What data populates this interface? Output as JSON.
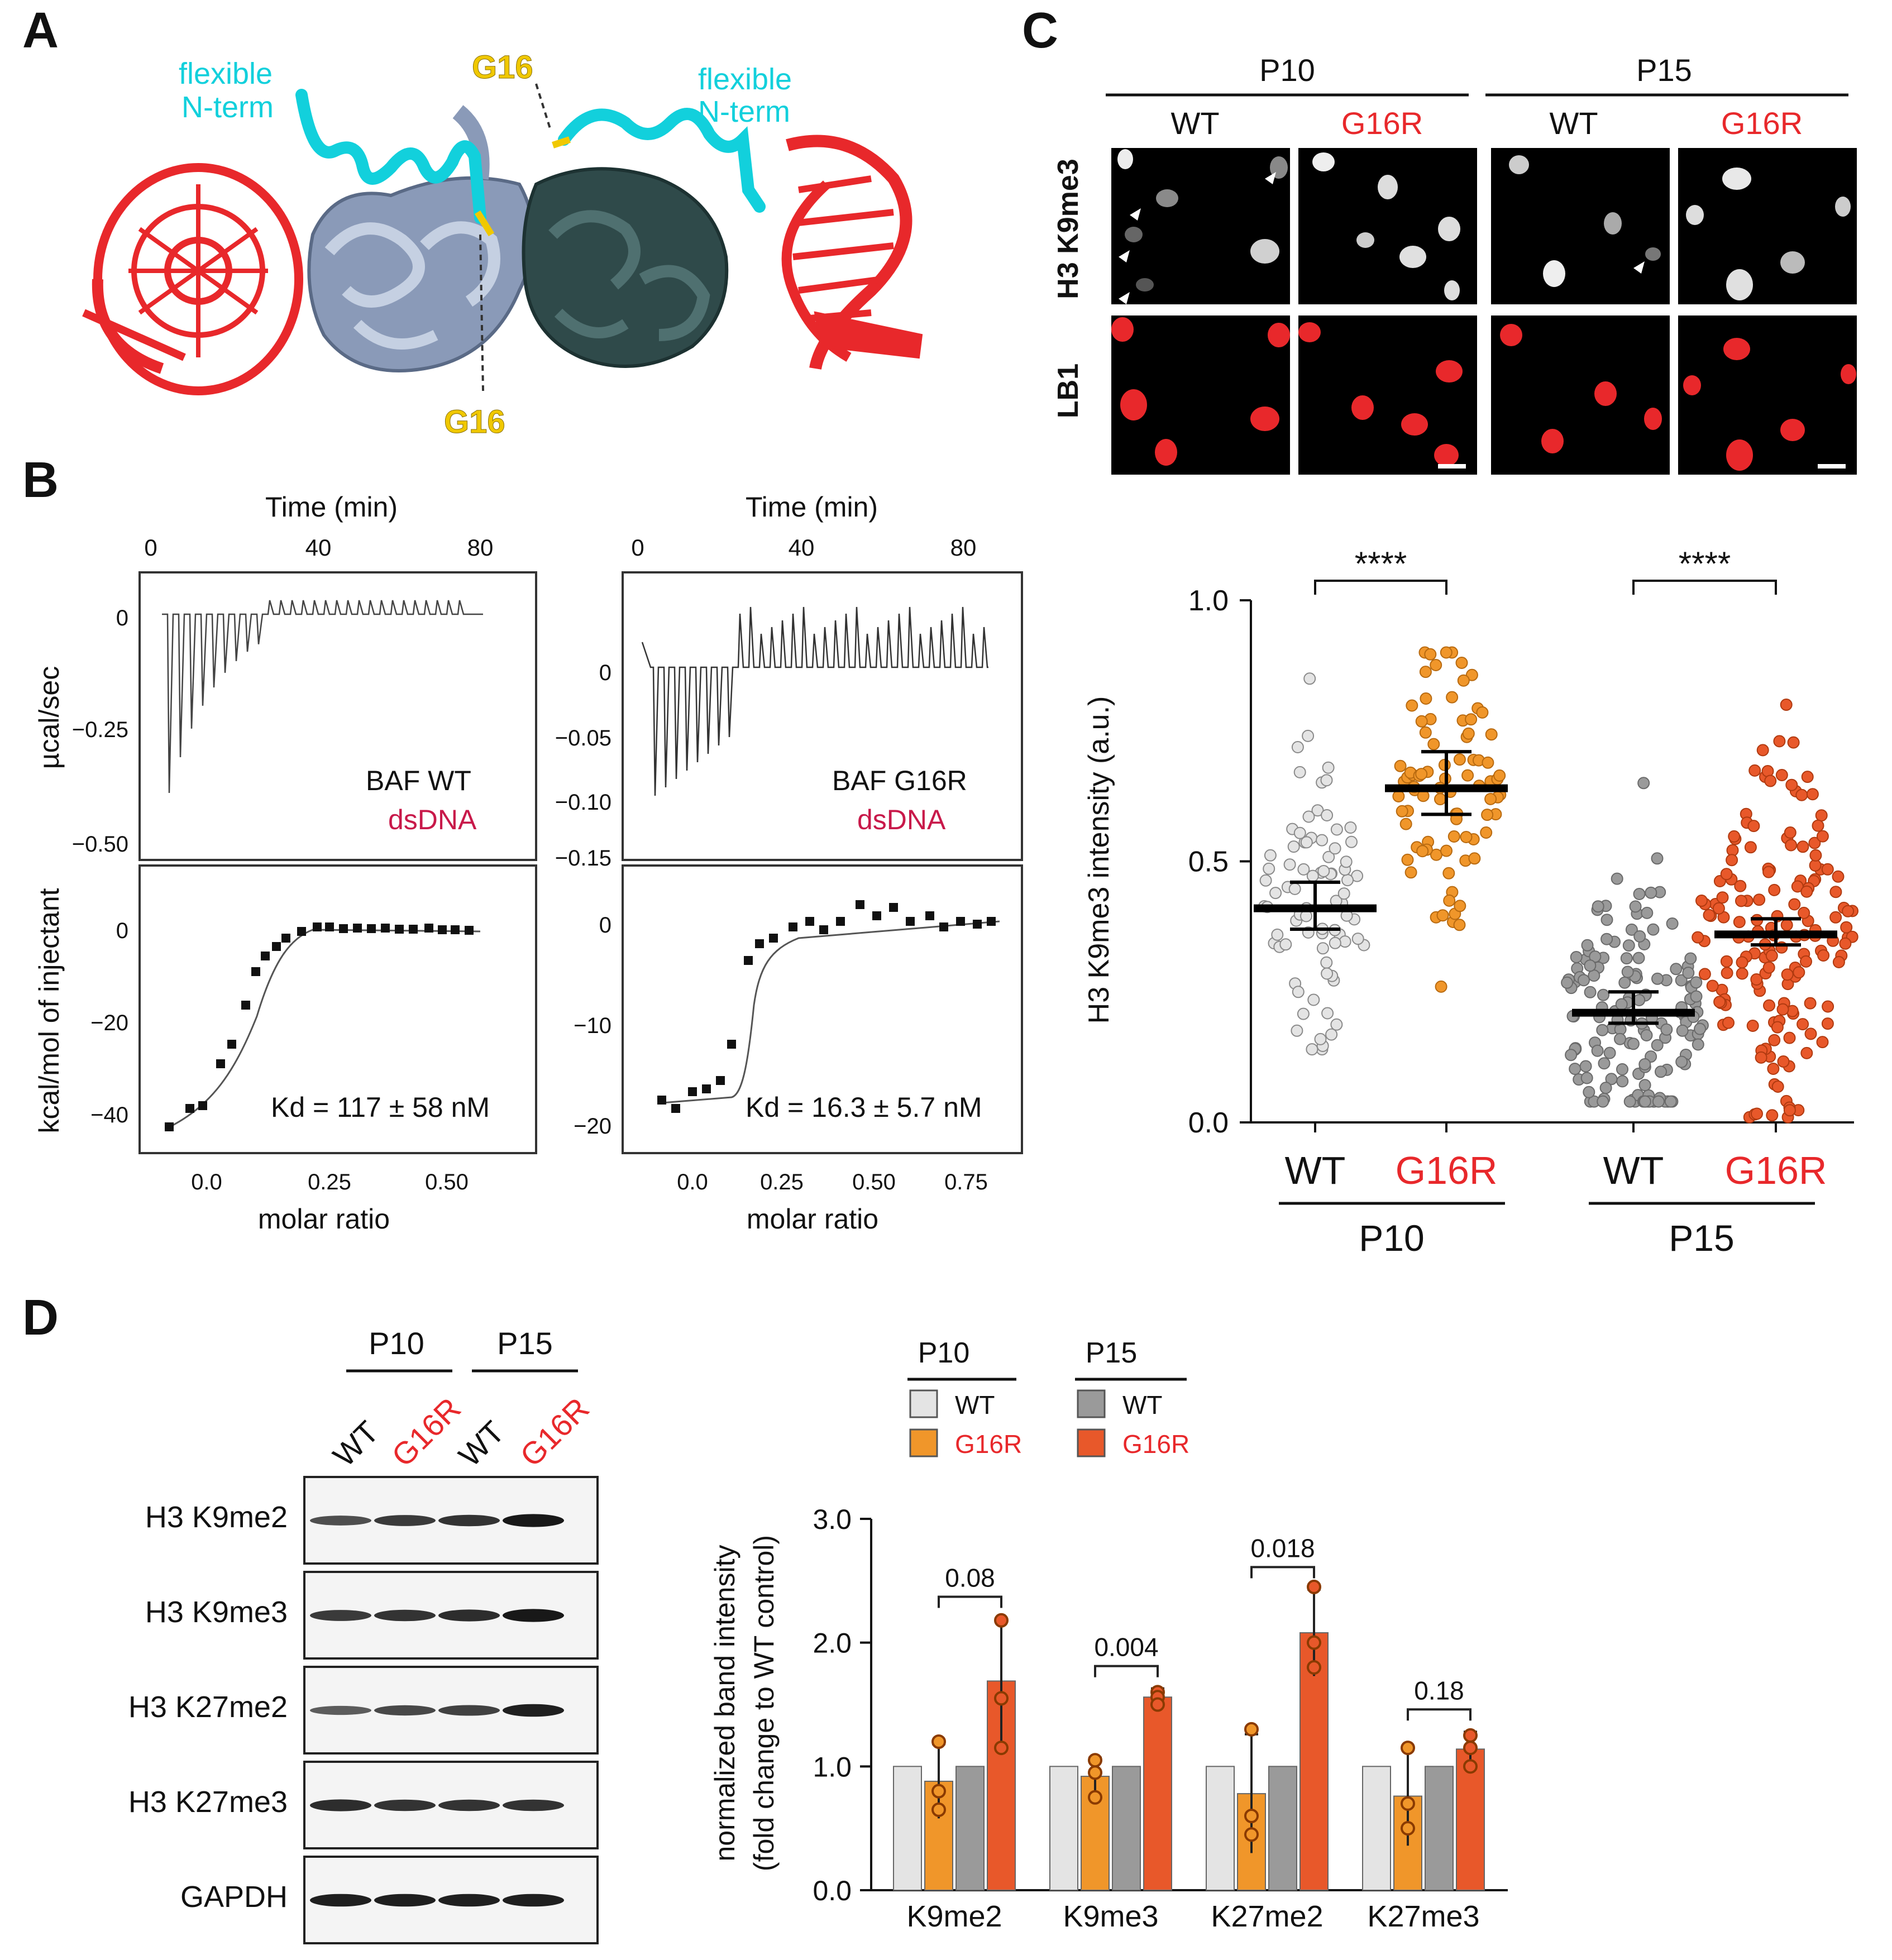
{
  "colors": {
    "red": "#e8282b",
    "cyan": "#12d0dc",
    "yellow": "#f0c800",
    "steel": "#8a9ab8",
    "dark_teal": "#2f4a4a",
    "dsDNA": "#c8194a",
    "wt_p10": "#e4e4e4",
    "g16r_p10": "#f0962a",
    "wt_p15": "#9a9a9a",
    "g16r_p15": "#e8582a"
  },
  "panelA": {
    "letter": "A",
    "flex_left_1": "flexible",
    "flex_left_2": "N-term",
    "flex_right_1": "flexible",
    "flex_right_2": "N-term",
    "g16_top": "G16",
    "g16_bottom": "G16"
  },
  "panelB": {
    "letter": "B",
    "left": {
      "time_label": "Time (min)",
      "time_ticks": [
        "0",
        "40",
        "80"
      ],
      "y_top_label": "µcal/sec",
      "y_top_ticks": [
        "0",
        "−0.25",
        "−0.50"
      ],
      "protein": "BAF WT",
      "ligand": "dsDNA",
      "y_bot_label": "kcal/mol of injectant",
      "y_bot_ticks": [
        "0",
        "−20",
        "−40"
      ],
      "x_ticks": [
        "0.0",
        "0.25",
        "0.50"
      ],
      "x_label": "molar ratio",
      "kd": "Kd = 117 ± 58 nM"
    },
    "right": {
      "time_label": "Time (min)",
      "time_ticks": [
        "0",
        "40",
        "80"
      ],
      "y_top_ticks": [
        "0",
        "−0.05",
        "−0.10",
        "−0.15"
      ],
      "protein": "BAF G16R",
      "ligand": "dsDNA",
      "y_bot_ticks": [
        "0",
        "−10",
        "−20"
      ],
      "x_ticks": [
        "0.0",
        "0.25",
        "0.50",
        "0.75"
      ],
      "x_label": "molar ratio",
      "kd": "Kd = 16.3 ± 5.7 nM"
    }
  },
  "panelC": {
    "letter": "C",
    "p10": "P10",
    "p15": "P15",
    "wt": "WT",
    "g16r": "G16R",
    "row1": "H3 K9me3",
    "row2": "LB1"
  },
  "panelD": {
    "letter": "D",
    "blot_p10": "P10",
    "blot_p15": "P15",
    "lane_labels": [
      "WT",
      "G16R",
      "WT",
      "G16R"
    ],
    "blot_rows": [
      "H3 K9me2",
      "H3 K9me3",
      "H3 K27me2",
      "H3 K27me3",
      "GAPDH"
    ],
    "legend_p10": "P10",
    "legend_p15": "P15",
    "legend_wt": "WT",
    "legend_g16r": "G16R"
  },
  "chart_data": [
    {
      "type": "scatter",
      "subtype": "dot-plot",
      "panel": "C",
      "ylabel": "H3 K9me3 intensity (a.u.)",
      "ylim": [
        0.0,
        1.0
      ],
      "yticks": [
        "0.0",
        "0.5",
        "1.0"
      ],
      "groups": [
        {
          "label": "WT",
          "passage": "P10",
          "color": "#e4e4e4",
          "mean": 0.41,
          "ci": [
            0.37,
            0.46
          ],
          "range": [
            0.14,
            0.85
          ],
          "n": 80
        },
        {
          "label": "G16R",
          "passage": "P10",
          "color": "#f0962a",
          "mean": 0.64,
          "ci": [
            0.59,
            0.71
          ],
          "range": [
            0.26,
            0.9
          ],
          "n": 85
        },
        {
          "label": "WT",
          "passage": "P15",
          "color": "#9a9a9a",
          "mean": 0.21,
          "ci": [
            0.19,
            0.25
          ],
          "range": [
            0.04,
            0.65
          ],
          "n": 150
        },
        {
          "label": "G16R",
          "passage": "P15",
          "color": "#e8582a",
          "mean": 0.36,
          "ci": [
            0.34,
            0.39
          ],
          "range": [
            0.01,
            0.8
          ],
          "n": 160
        }
      ],
      "significance": [
        "****",
        "****"
      ],
      "group_labels": [
        "P10",
        "P15"
      ]
    },
    {
      "type": "bar",
      "panel": "D",
      "ylabel_1": "normalized band intensity",
      "ylabel_2": "(fold change to WT control)",
      "ylim": [
        0.0,
        3.0
      ],
      "yticks": [
        "0.0",
        "1.0",
        "2.0",
        "3.0"
      ],
      "categories": [
        "K9me2",
        "K9me3",
        "K27me2",
        "K27me3"
      ],
      "series": [
        {
          "name": "P10 WT",
          "color": "#e4e4e4",
          "values": [
            1.0,
            1.0,
            1.0,
            1.0
          ],
          "err": [
            0,
            0,
            0,
            0
          ],
          "points": [
            [],
            [],
            [],
            []
          ]
        },
        {
          "name": "P10 G16R",
          "color": "#f0962a",
          "values": [
            0.88,
            0.92,
            0.78,
            0.76
          ],
          "err": [
            0.3,
            0.15,
            0.48,
            0.4
          ],
          "points": [
            [
              1.2,
              0.8,
              0.65
            ],
            [
              1.05,
              0.95,
              0.75
            ],
            [
              1.3,
              0.6,
              0.45
            ],
            [
              1.15,
              0.7,
              0.5
            ]
          ]
        },
        {
          "name": "P15 WT",
          "color": "#9a9a9a",
          "values": [
            1.0,
            1.0,
            1.0,
            1.0
          ],
          "err": [
            0,
            0,
            0,
            0
          ],
          "points": [
            [],
            [],
            [],
            []
          ]
        },
        {
          "name": "P15 G16R",
          "color": "#e8582a",
          "values": [
            1.69,
            1.56,
            2.08,
            1.14
          ],
          "err": [
            0.5,
            0.07,
            0.35,
            0.14
          ],
          "points": [
            [
              2.18,
              1.55,
              1.15
            ],
            [
              1.6,
              1.56,
              1.5
            ],
            [
              2.45,
              2.0,
              1.8
            ],
            [
              1.25,
              1.15,
              1.0
            ]
          ]
        }
      ],
      "pvalues": [
        "0.08",
        "0.004",
        "0.018",
        "0.18"
      ]
    }
  ]
}
